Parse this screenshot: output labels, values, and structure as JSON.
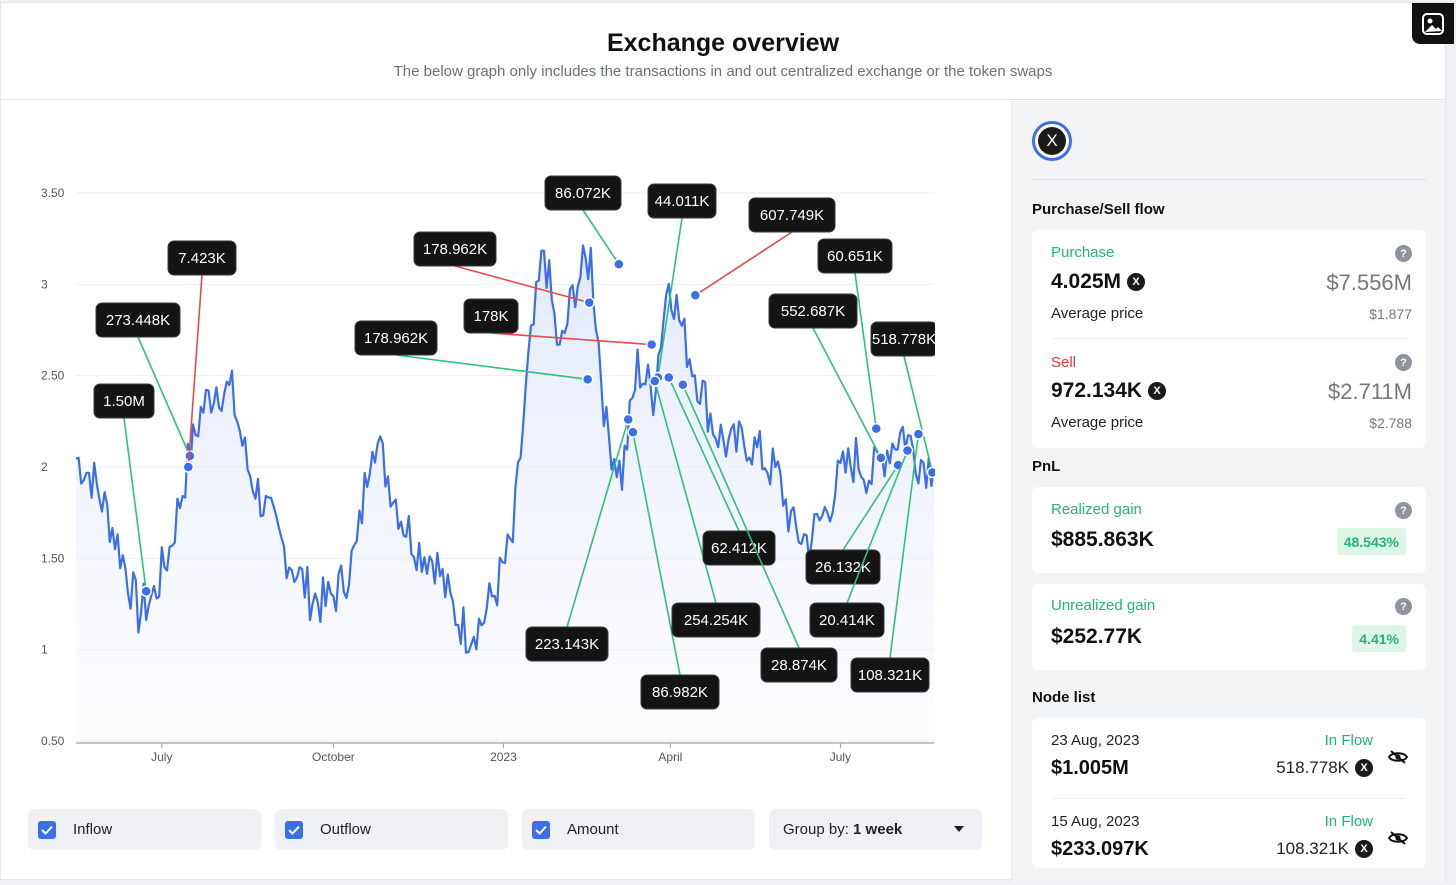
{
  "header": {
    "title": "Exchange overview",
    "subtitle": "The below graph only includes the transactions in and out centralized exchange or the token swaps"
  },
  "colors": {
    "line": "#3b6ee8",
    "inflow_link": "#2bc37a",
    "outflow_link": "#e84a4a",
    "accent": "#3b6ee8",
    "positive": "#22b573",
    "negative": "#e0393e"
  },
  "chart_data": {
    "type": "line",
    "x_labels": [
      "July",
      "October",
      "2023",
      "April",
      "July"
    ],
    "y_ticks": [
      "0.50",
      "1",
      "1.50",
      "2",
      "2.50",
      "3",
      "3.50"
    ],
    "ylim": [
      0.5,
      3.5
    ],
    "grid": true,
    "price_series": [
      {
        "x": 0.0,
        "y": 2.05
      },
      {
        "x": 1.0,
        "y": 1.95
      },
      {
        "x": 2.0,
        "y": 1.75
      },
      {
        "x": 3.0,
        "y": 1.5
      },
      {
        "x": 4.0,
        "y": 1.2
      },
      {
        "x": 5.0,
        "y": 1.3
      },
      {
        "x": 6.0,
        "y": 1.55
      },
      {
        "x": 7.0,
        "y": 1.95
      },
      {
        "x": 8.0,
        "y": 2.3
      },
      {
        "x": 9.0,
        "y": 2.45
      },
      {
        "x": 10.0,
        "y": 2.4
      },
      {
        "x": 11.0,
        "y": 2.0
      },
      {
        "x": 12.0,
        "y": 1.8
      },
      {
        "x": 13.0,
        "y": 1.6
      },
      {
        "x": 14.0,
        "y": 1.45
      },
      {
        "x": 15.0,
        "y": 1.3
      },
      {
        "x": 16.0,
        "y": 1.25
      },
      {
        "x": 17.0,
        "y": 1.35
      },
      {
        "x": 18.0,
        "y": 1.55
      },
      {
        "x": 19.0,
        "y": 2.2
      },
      {
        "x": 20.0,
        "y": 1.95
      },
      {
        "x": 21.0,
        "y": 1.7
      },
      {
        "x": 22.0,
        "y": 1.55
      },
      {
        "x": 23.0,
        "y": 1.5
      },
      {
        "x": 24.0,
        "y": 1.25
      },
      {
        "x": 25.0,
        "y": 1.1
      },
      {
        "x": 26.0,
        "y": 1.15
      },
      {
        "x": 27.0,
        "y": 1.35
      },
      {
        "x": 28.0,
        "y": 1.6
      },
      {
        "x": 29.0,
        "y": 2.55
      },
      {
        "x": 30.0,
        "y": 3.2
      },
      {
        "x": 31.0,
        "y": 2.6
      },
      {
        "x": 32.0,
        "y": 3.0
      },
      {
        "x": 33.0,
        "y": 3.15
      },
      {
        "x": 34.0,
        "y": 2.2
      },
      {
        "x": 35.0,
        "y": 1.95
      },
      {
        "x": 36.0,
        "y": 2.55
      },
      {
        "x": 37.0,
        "y": 2.4
      },
      {
        "x": 38.0,
        "y": 3.05
      },
      {
        "x": 39.0,
        "y": 2.7
      },
      {
        "x": 40.0,
        "y": 2.45
      },
      {
        "x": 41.0,
        "y": 2.2
      },
      {
        "x": 42.0,
        "y": 2.1
      },
      {
        "x": 43.0,
        "y": 2.15
      },
      {
        "x": 44.0,
        "y": 2.05
      },
      {
        "x": 45.0,
        "y": 1.95
      },
      {
        "x": 46.0,
        "y": 1.65
      },
      {
        "x": 47.0,
        "y": 1.6
      },
      {
        "x": 48.0,
        "y": 1.75
      },
      {
        "x": 49.0,
        "y": 1.95
      },
      {
        "x": 50.0,
        "y": 2.05
      },
      {
        "x": 51.0,
        "y": 1.95
      },
      {
        "x": 52.0,
        "y": 2.1
      },
      {
        "x": 53.0,
        "y": 2.2
      },
      {
        "x": 54.0,
        "y": 2.05
      },
      {
        "x": 55.0,
        "y": 2.0
      }
    ],
    "x_range": [
      0,
      55
    ],
    "x_label_positions": [
      5.5,
      16.5,
      27.4,
      38.1,
      49.0
    ],
    "callouts_inflow": [
      {
        "label": "1.50M",
        "point": {
          "x": 4.5,
          "y": 1.32
        }
      },
      {
        "label": "273.448K",
        "point": {
          "x": 7.3,
          "y": 2.06
        }
      },
      {
        "label": "178.962K",
        "point": {
          "x": 32.8,
          "y": 2.48
        }
      },
      {
        "label": "86.072K",
        "point": {
          "x": 34.8,
          "y": 3.11
        }
      },
      {
        "label": "44.011K",
        "point": {
          "x": 37.3,
          "y": 2.49
        }
      },
      {
        "label": "60.651K",
        "point": {
          "x": 51.3,
          "y": 2.21
        }
      },
      {
        "label": "552.687K",
        "point": {
          "x": 51.6,
          "y": 2.05
        }
      },
      {
        "label": "518.778K",
        "point": {
          "x": 54.9,
          "y": 1.97
        }
      },
      {
        "label": "223.143K",
        "point": {
          "x": 35.4,
          "y": 2.26
        }
      },
      {
        "label": "86.982K",
        "point": {
          "x": 35.7,
          "y": 2.19
        }
      },
      {
        "label": "254.254K",
        "point": {
          "x": 37.1,
          "y": 2.47
        }
      },
      {
        "label": "62.412K",
        "point": {
          "x": 38.0,
          "y": 2.49
        }
      },
      {
        "label": "28.874K",
        "point": {
          "x": 38.9,
          "y": 2.45
        }
      },
      {
        "label": "26.132K",
        "point": {
          "x": 52.7,
          "y": 2.01
        }
      },
      {
        "label": "20.414K",
        "point": {
          "x": 53.3,
          "y": 2.09
        }
      },
      {
        "label": "108.321K",
        "point": {
          "x": 54.0,
          "y": 2.18
        }
      }
    ],
    "callouts_outflow": [
      {
        "label": "7.423K",
        "point": {
          "x": 7.2,
          "y": 2.0
        }
      },
      {
        "label": "178.962K",
        "point": {
          "x": 32.9,
          "y": 2.9
        }
      },
      {
        "label": "178K",
        "point": {
          "x": 36.9,
          "y": 2.67
        }
      },
      {
        "label": "607.749K",
        "point": {
          "x": 39.7,
          "y": 2.94
        }
      }
    ]
  },
  "controls": {
    "inflow_label": "Inflow",
    "outflow_label": "Outflow",
    "amount_label": "Amount",
    "group_prefix": "Group by:",
    "group_value": "1 week"
  },
  "sidebar": {
    "token_symbol": "X",
    "purchase_sell_title": "Purchase/Sell flow",
    "purchase": {
      "label": "Purchase",
      "amount": "4.025M",
      "usd": "$7.556M",
      "avg_label": "Average price",
      "avg_value": "$1.877"
    },
    "sell": {
      "label": "Sell",
      "amount": "972.134K",
      "usd": "$2.711M",
      "avg_label": "Average price",
      "avg_value": "$2.788"
    },
    "pnl_title": "PnL",
    "realized": {
      "label": "Realized gain",
      "value": "$885.863K",
      "pct": "48.543%"
    },
    "unrealized": {
      "label": "Unrealized gain",
      "value": "$252.77K",
      "pct": "4.41%"
    },
    "node_list_title": "Node list",
    "nodes": [
      {
        "date": "23 Aug, 2023",
        "value": "$1.005M",
        "flow": "In Flow",
        "amount": "518.778K"
      },
      {
        "date": "15 Aug, 2023",
        "value": "$233.097K",
        "flow": "In Flow",
        "amount": "108.321K"
      }
    ],
    "help_glyph": "?",
    "x_glyph": "X"
  }
}
